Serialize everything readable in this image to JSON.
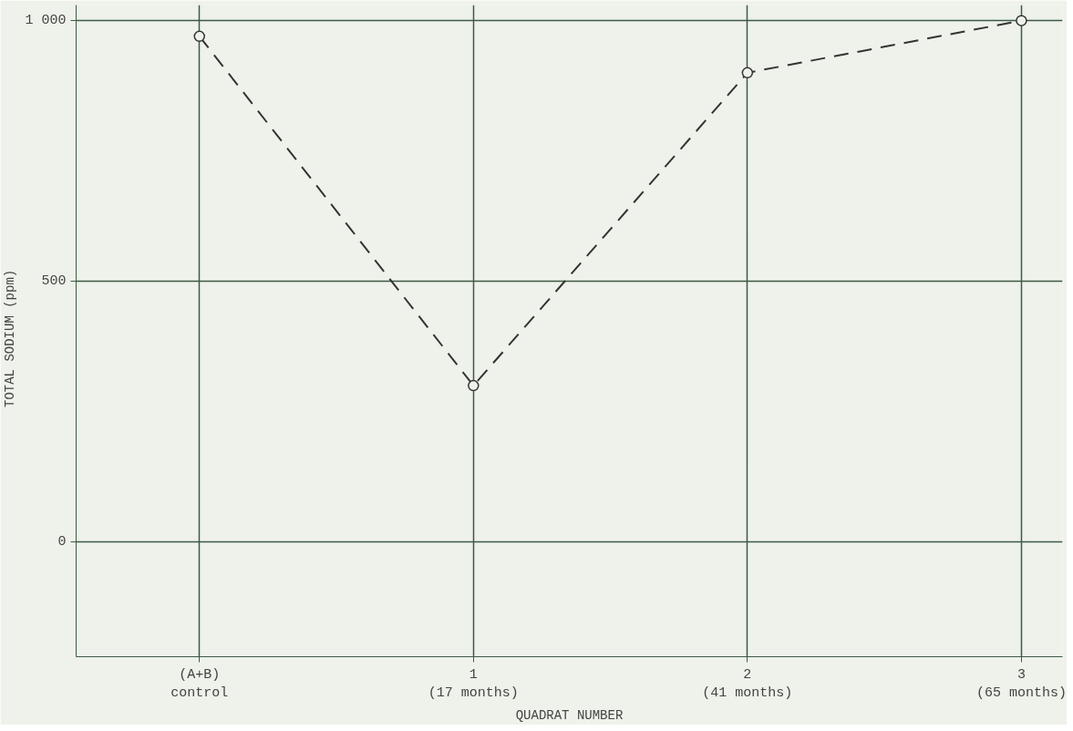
{
  "chart_data": {
    "type": "line",
    "xlabel": "QUADRAT NUMBER",
    "ylabel": "TOTAL SODIUM   (ppm)",
    "categories": [
      "(A+B)\ncontrol",
      "1\n(17 months)",
      "2\n(41 months)",
      "3\n(65 months)"
    ],
    "series": [
      {
        "color": "#333333",
        "values": [
          970,
          300,
          900,
          1000
        ]
      }
    ],
    "ylim": [
      -220,
      1030
    ],
    "yticks": [
      0,
      500,
      {
        "value": 1000,
        "label": "1 000"
      }
    ],
    "grid": true,
    "marker": "circle",
    "line_style": "dashed"
  }
}
